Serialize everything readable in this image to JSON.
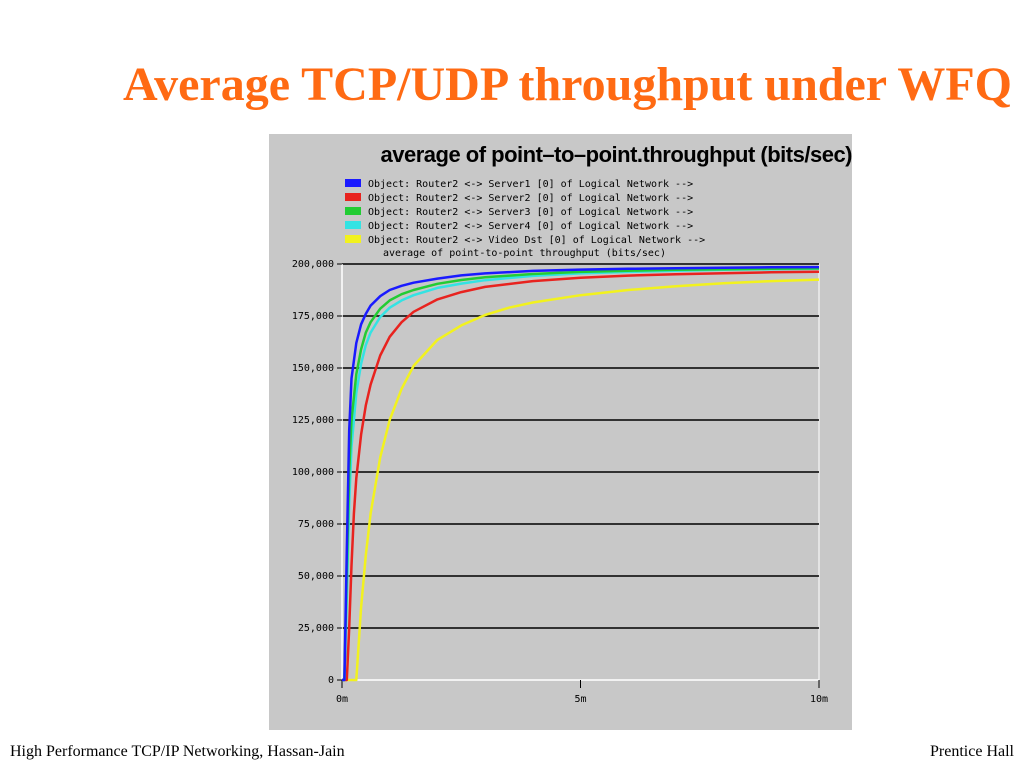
{
  "slide": {
    "title": "Average TCP/UDP throughput under WFQ",
    "title_color": "#ff6a13",
    "footer_left": "High Performance TCP/IP Networking, Hassan-Jain",
    "footer_right": "Prentice Hall"
  },
  "chart_data": {
    "type": "line",
    "title": "average of point–to–point.throughput (bits/sec)",
    "subtitle": "average of point-to-point throughput (bits/sec)",
    "legend_placement": "top",
    "grid": true,
    "background": "#c8c8c8",
    "plot_background": "#c8c8c8",
    "xlim": [
      0,
      10
    ],
    "ylim": [
      0,
      200000
    ],
    "x_ticks": [
      {
        "value": 0,
        "label": "0m"
      },
      {
        "value": 5,
        "label": "5m"
      },
      {
        "value": 10,
        "label": "10m"
      }
    ],
    "y_ticks": [
      {
        "value": 0,
        "label": "0"
      },
      {
        "value": 25000,
        "label": "25,000"
      },
      {
        "value": 50000,
        "label": "50,000"
      },
      {
        "value": 75000,
        "label": "75,000"
      },
      {
        "value": 100000,
        "label": "100,000"
      },
      {
        "value": 125000,
        "label": "125,000"
      },
      {
        "value": 150000,
        "label": "150,000"
      },
      {
        "value": 175000,
        "label": "175,000"
      },
      {
        "value": 200000,
        "label": "200,000"
      }
    ],
    "series": [
      {
        "name": "Object: Router2 <-> Server1 [0] of Logical Network -->",
        "color": "#1a1aff",
        "x": [
          0.0,
          0.05,
          0.1,
          0.15,
          0.2,
          0.3,
          0.4,
          0.5,
          0.6,
          0.8,
          1.0,
          1.25,
          1.5,
          2.0,
          2.5,
          3.0,
          4.0,
          5.0,
          6.0,
          7.0,
          8.0,
          9.0,
          10.0
        ],
        "y": [
          0,
          0,
          62000,
          120000,
          145000,
          162000,
          171000,
          176000,
          180000,
          184500,
          187500,
          189500,
          191000,
          193000,
          194500,
          195500,
          196700,
          197300,
          197700,
          198000,
          198200,
          198400,
          198500
        ]
      },
      {
        "name": "Object: Router2 <-> Server2 [0] of Logical Network -->",
        "color": "#e8231f",
        "x": [
          0.0,
          0.1,
          0.15,
          0.2,
          0.25,
          0.3,
          0.4,
          0.5,
          0.6,
          0.8,
          1.0,
          1.25,
          1.5,
          2.0,
          2.5,
          3.0,
          4.0,
          5.0,
          6.0,
          7.0,
          8.0,
          9.0,
          10.0
        ],
        "y": [
          0,
          0,
          25000,
          55000,
          80000,
          97000,
          118000,
          132000,
          142000,
          156000,
          165000,
          172000,
          177000,
          183000,
          186500,
          189000,
          191800,
          193400,
          194400,
          195100,
          195600,
          196000,
          196300
        ]
      },
      {
        "name": "Object: Router2 <-> Server3 [0] of Logical Network -->",
        "color": "#22cc33",
        "x": [
          0.0,
          0.05,
          0.1,
          0.15,
          0.2,
          0.3,
          0.4,
          0.5,
          0.6,
          0.8,
          1.0,
          1.25,
          1.5,
          2.0,
          2.5,
          3.0,
          4.0,
          5.0,
          6.0,
          7.0,
          8.0,
          9.0,
          10.0
        ],
        "y": [
          0,
          0,
          52000,
          100000,
          125000,
          147000,
          159000,
          167000,
          172000,
          178500,
          182500,
          185500,
          187500,
          190500,
          192300,
          193600,
          195200,
          196200,
          196800,
          197200,
          197500,
          197700,
          197900
        ]
      },
      {
        "name": "Object: Router2 <-> Server4 [0] of Logical Network -->",
        "color": "#33e3e3",
        "x": [
          0.0,
          0.05,
          0.1,
          0.15,
          0.2,
          0.3,
          0.4,
          0.5,
          0.6,
          0.8,
          1.0,
          1.25,
          1.5,
          2.0,
          2.5,
          3.0,
          4.0,
          5.0,
          6.0,
          7.0,
          8.0,
          9.0,
          10.0
        ],
        "y": [
          0,
          0,
          40000,
          85000,
          112000,
          138000,
          152000,
          161000,
          167000,
          174500,
          179000,
          182500,
          185000,
          188500,
          190600,
          192200,
          194300,
          195500,
          196200,
          196800,
          197200,
          197500,
          197700
        ]
      },
      {
        "name": "Object: Router2 <-> Video Dst [0] of Logical Network -->",
        "color": "#f2f21e",
        "x": [
          0.0,
          0.3,
          0.4,
          0.5,
          0.6,
          0.8,
          1.0,
          1.25,
          1.5,
          2.0,
          2.5,
          3.0,
          3.5,
          4.0,
          5.0,
          6.0,
          7.0,
          8.0,
          9.0,
          10.0
        ],
        "y": [
          0,
          0,
          35000,
          60000,
          80000,
          107000,
          125000,
          140000,
          151000,
          163500,
          170500,
          175500,
          179000,
          181500,
          185000,
          187500,
          189300,
          190700,
          191800,
          192500
        ]
      }
    ]
  }
}
